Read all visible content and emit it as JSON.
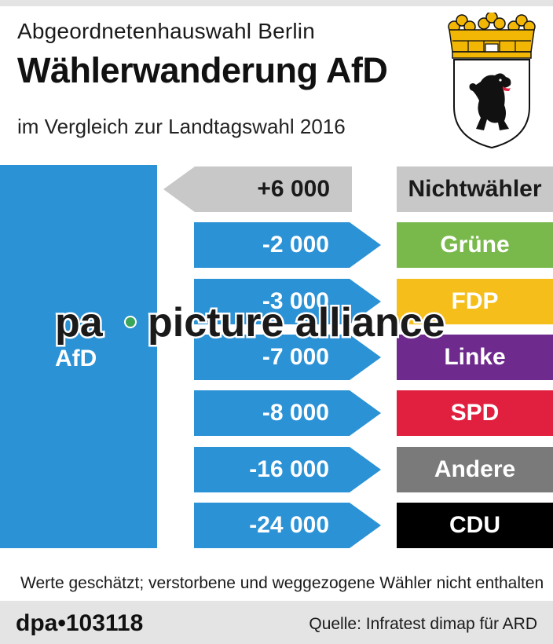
{
  "header": {
    "title": "Abgeordnetenhauswahl Berlin",
    "headline": "Wählerwanderung AfD",
    "subtitle": "im Vergleich zur Landtagswahl 2016"
  },
  "chart_data": {
    "type": "bar",
    "target": "AfD",
    "categories": [
      "Nichtwähler",
      "Grüne",
      "FDP",
      "Linke",
      "SPD",
      "Andere",
      "CDU"
    ],
    "values": [
      6000,
      -2000,
      -3000,
      -7000,
      -8000,
      -16000,
      -24000
    ],
    "value_labels": [
      "+6 000",
      "-2 000",
      "-3 000",
      "-7 000",
      "-8 000",
      "-16 000",
      "-24 000"
    ],
    "colors": [
      "#c8c8c8",
      "#79b94b",
      "#f5be1a",
      "#6e2a8d",
      "#e1203f",
      "#7a7a7a",
      "#000000"
    ],
    "label_colors": [
      "#1a1a1a",
      "#ffffff",
      "#ffffff",
      "#ffffff",
      "#ffffff",
      "#ffffff",
      "#ffffff"
    ],
    "inflow_color": "#c8c8c8",
    "outflow_color": "#2b92d6",
    "target_color": "#2b92d6"
  },
  "note": "Werte geschätzt; verstorbene und weggezogene Wähler nicht enthalten",
  "footer": {
    "agency": "dpa•103118",
    "source": "Quelle: Infratest dimap für ARD"
  },
  "watermark": {
    "left": "pa",
    "right": "picture alliance",
    "dot_color": "#3ba55c"
  },
  "crest": {
    "icon": "berlin-bear-crest-icon",
    "crown_color": "#f2b705",
    "bear_color": "#111111",
    "tongue_color": "#e1203f"
  }
}
